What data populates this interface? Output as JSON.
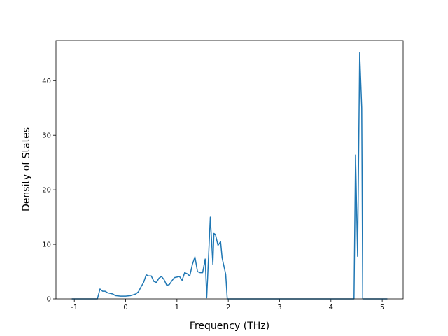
{
  "chart_data": {
    "type": "line",
    "xlabel": "Frequency (THz)",
    "ylabel": "Density of States",
    "x": [
      -1.05,
      -0.55,
      -0.5,
      -0.45,
      -0.4,
      -0.35,
      -0.25,
      -0.2,
      -0.1,
      0,
      0.1,
      0.2,
      0.25,
      0.3,
      0.35,
      0.4,
      0.45,
      0.5,
      0.55,
      0.6,
      0.65,
      0.7,
      0.75,
      0.8,
      0.85,
      0.9,
      0.95,
      1.0,
      1.05,
      1.1,
      1.15,
      1.2,
      1.25,
      1.3,
      1.35,
      1.4,
      1.45,
      1.5,
      1.55,
      1.58,
      1.65,
      1.7,
      1.72,
      1.75,
      1.8,
      1.85,
      1.88,
      1.95,
      1.98,
      4.45,
      4.48,
      4.52,
      4.56,
      4.6,
      4.62,
      5.1
    ],
    "values": [
      0,
      0,
      1.8,
      1.4,
      1.4,
      1.1,
      0.9,
      0.6,
      0.5,
      0.5,
      0.6,
      0.9,
      1.3,
      2.2,
      3.0,
      4.4,
      4.2,
      4.2,
      3.2,
      3.0,
      3.8,
      4.1,
      3.5,
      2.5,
      2.6,
      3.3,
      3.9,
      4.0,
      4.1,
      3.4,
      4.8,
      4.6,
      4.2,
      6.3,
      7.7,
      5.0,
      4.8,
      4.8,
      7.3,
      0.2,
      15.0,
      6.3,
      12.0,
      11.8,
      9.8,
      10.5,
      7.5,
      4.5,
      0,
      0,
      26.4,
      7.8,
      45.1,
      35,
      0,
      0
    ],
    "color": "#1f77b4",
    "xlim": [
      -1.3575,
      5.4075
    ],
    "xticks": [
      -1,
      0,
      1,
      2,
      3,
      4,
      5
    ],
    "ylim": [
      0,
      47.35
    ],
    "yticks": [
      0,
      10,
      20,
      30,
      40
    ]
  }
}
